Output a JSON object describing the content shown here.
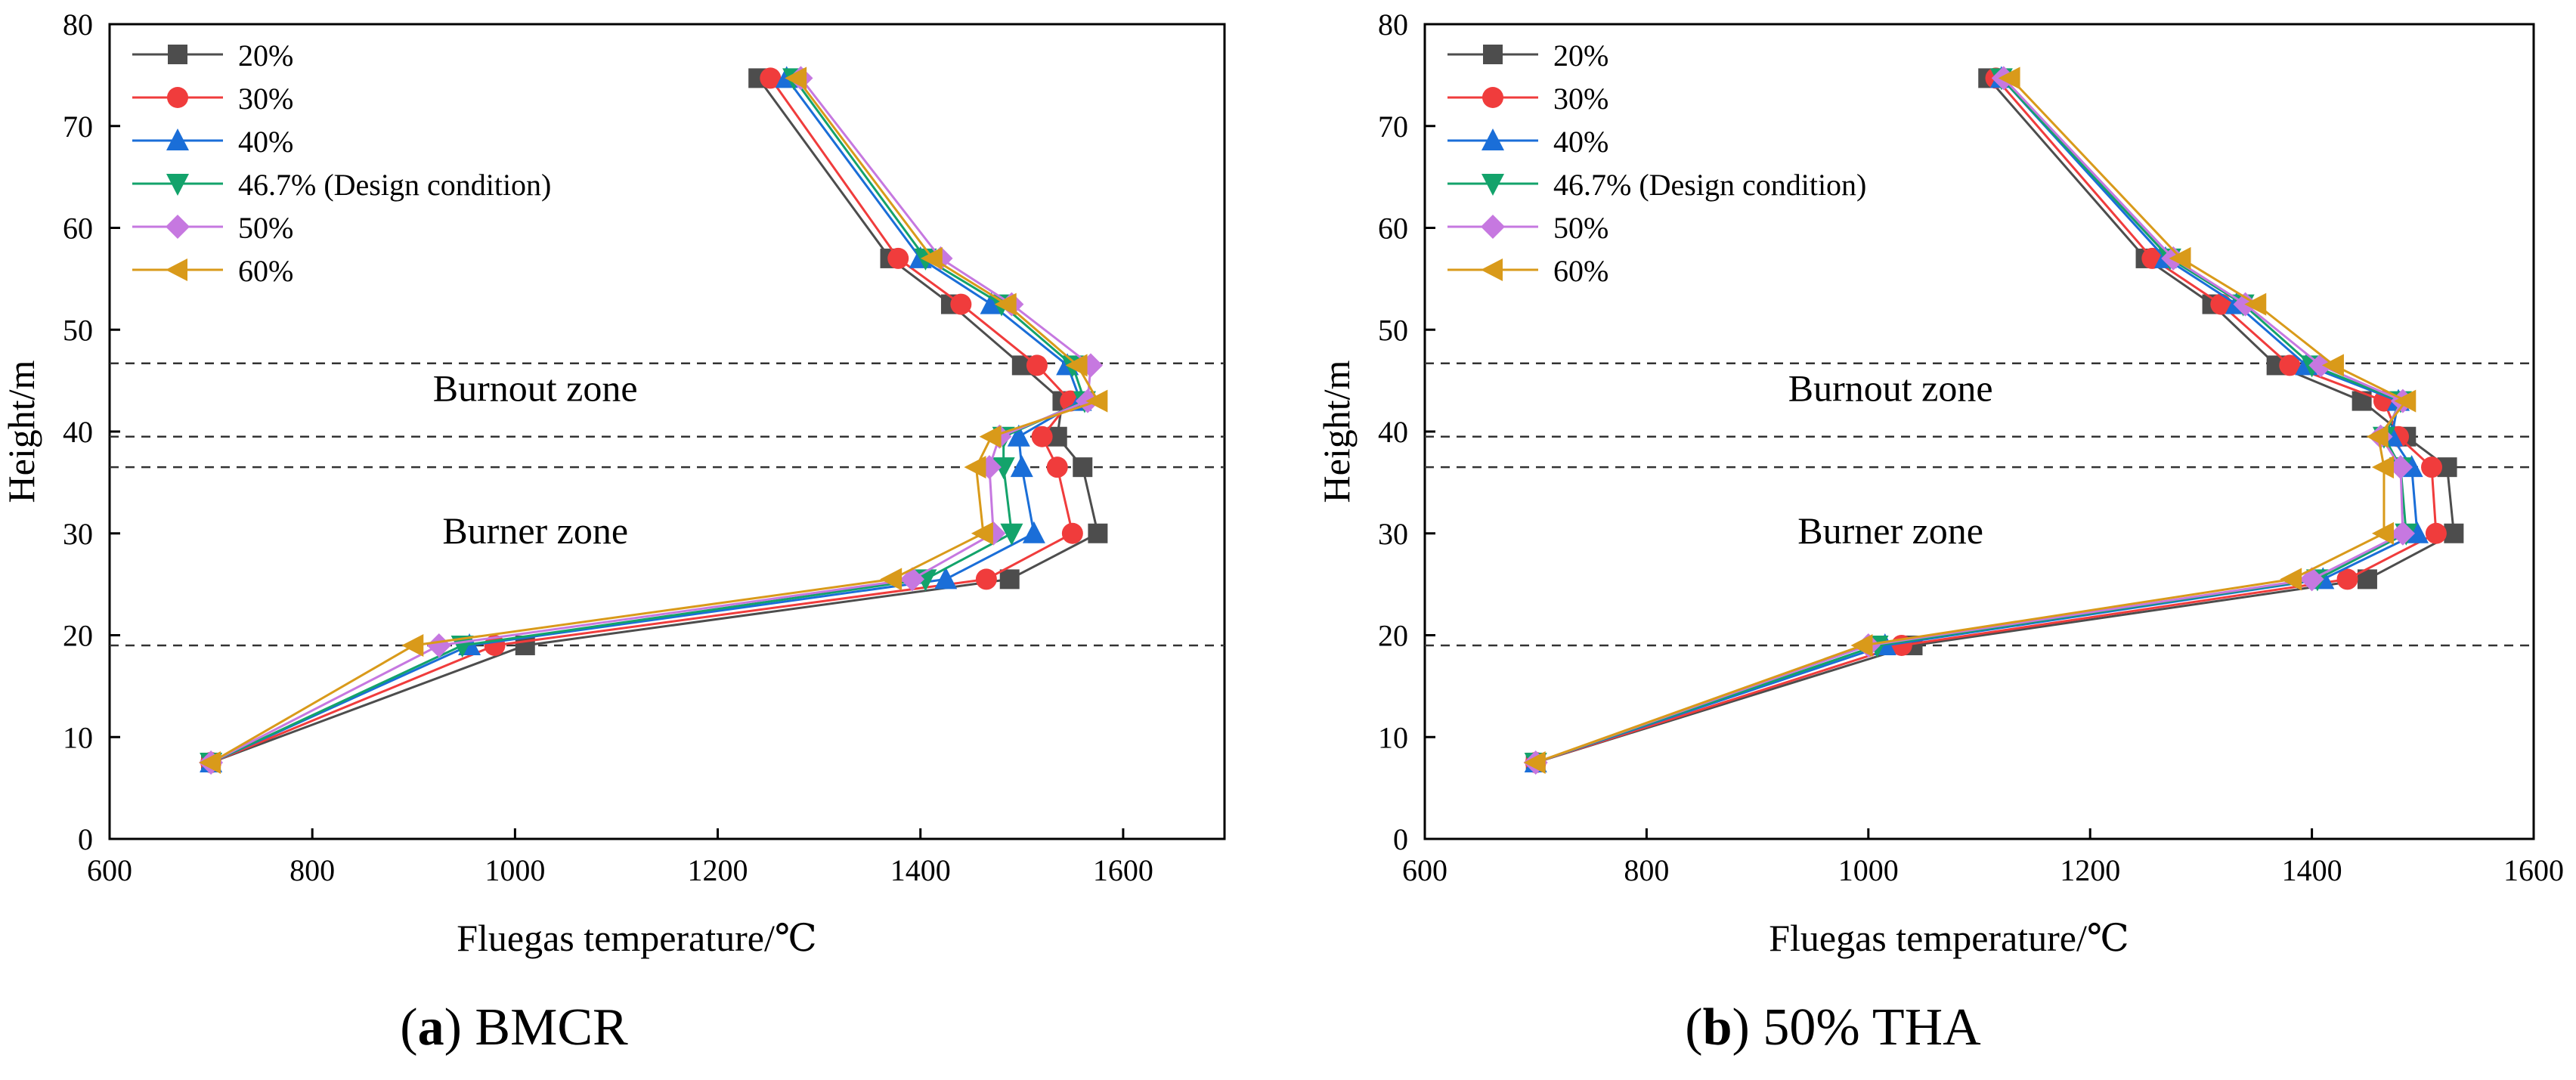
{
  "colors": {
    "20%": "#4d4d4d",
    "30%": "#f03c3c",
    "40%": "#1a6ed8",
    "46.7% (Design condition)": "#13a36b",
    "50%": "#c678e0",
    "60%": "#d99a1a",
    "dash_lines": "#333333"
  },
  "captions": [
    {
      "letter": "a",
      "text": "BMCR"
    },
    {
      "letter": "b",
      "text": "50% THA"
    }
  ],
  "chart_data": [
    {
      "type": "line",
      "xlabel": "Fluegas temperature/℃",
      "ylabel": "Height/m",
      "xlim": [
        600,
        1700
      ],
      "ylim": [
        0,
        80
      ],
      "xticks": [
        600,
        800,
        1000,
        1200,
        1400,
        1600
      ],
      "yticks": [
        0,
        10,
        20,
        30,
        40,
        50,
        60,
        70,
        80
      ],
      "legend_position": "top-left",
      "grid": false,
      "hlines": [
        19,
        36.5,
        39.5,
        46.7
      ],
      "zone_labels": [
        {
          "text": "Burnout zone",
          "x": 1020,
          "y": 43
        },
        {
          "text": "Burner zone",
          "x": 1020,
          "y": 29
        }
      ],
      "series": [
        {
          "name": "20%",
          "marker": "square",
          "x": [
            700,
            1010,
            1488,
            1575,
            1560,
            1535,
            1540,
            1500,
            1430,
            1370,
            1240
          ],
          "y": [
            7.5,
            19,
            25.5,
            30,
            36.5,
            39.5,
            43,
            46.5,
            52.5,
            57,
            74.7
          ]
        },
        {
          "name": "30%",
          "marker": "circle",
          "x": [
            700,
            980,
            1465,
            1550,
            1535,
            1520,
            1548,
            1515,
            1440,
            1378,
            1252
          ],
          "y": [
            7.5,
            19,
            25.5,
            30,
            36.5,
            39.5,
            43,
            46.5,
            52.5,
            57,
            74.7
          ]
        },
        {
          "name": "40%",
          "marker": "triangle-up",
          "x": [
            700,
            955,
            1425,
            1512,
            1500,
            1497,
            1558,
            1545,
            1470,
            1400,
            1268
          ],
          "y": [
            7.5,
            19,
            25.5,
            30,
            36.5,
            39.5,
            43,
            46.5,
            52.5,
            57,
            74.7
          ]
        },
        {
          "name": "46.7% (Design condition)",
          "marker": "triangle-down",
          "x": [
            700,
            948,
            1405,
            1490,
            1482,
            1482,
            1562,
            1550,
            1480,
            1405,
            1275
          ],
          "y": [
            7.5,
            19,
            25.5,
            30,
            36.5,
            39.5,
            43,
            46.5,
            52.5,
            57,
            74.7
          ]
        },
        {
          "name": "50%",
          "marker": "diamond",
          "x": [
            700,
            925,
            1392,
            1472,
            1468,
            1478,
            1565,
            1568,
            1490,
            1420,
            1282
          ],
          "y": [
            7.5,
            19,
            25.5,
            30,
            36.5,
            39.5,
            43,
            46.5,
            52.5,
            57,
            74.7
          ]
        },
        {
          "name": "60%",
          "marker": "triangle-left",
          "x": [
            700,
            900,
            1372,
            1462,
            1455,
            1470,
            1575,
            1555,
            1485,
            1412,
            1278
          ],
          "y": [
            7.5,
            19,
            25.5,
            30,
            36.5,
            39.5,
            43,
            46.5,
            52.5,
            57,
            74.7
          ]
        }
      ]
    },
    {
      "type": "line",
      "xlabel": "Fluegas temperature/℃",
      "ylabel": "Height/m",
      "xlim": [
        600,
        1600
      ],
      "ylim": [
        0,
        80
      ],
      "xticks": [
        600,
        800,
        1000,
        1200,
        1400,
        1600
      ],
      "yticks": [
        0,
        10,
        20,
        30,
        40,
        50,
        60,
        70,
        80
      ],
      "legend_position": "top-left",
      "grid": false,
      "hlines": [
        19,
        36.5,
        39.5,
        46.7
      ],
      "zone_labels": [
        {
          "text": "Burnout zone",
          "x": 1020,
          "y": 43
        },
        {
          "text": "Burner zone",
          "x": 1020,
          "y": 29
        }
      ],
      "series": [
        {
          "name": "20%",
          "marker": "square",
          "x": [
            700,
            1040,
            1450,
            1528,
            1522,
            1485,
            1445,
            1368,
            1310,
            1250,
            1108
          ],
          "y": [
            7.5,
            19,
            25.5,
            30,
            36.5,
            39.5,
            43,
            46.5,
            52.5,
            57,
            74.7
          ]
        },
        {
          "name": "30%",
          "marker": "circle",
          "x": [
            700,
            1030,
            1432,
            1512,
            1508,
            1478,
            1465,
            1380,
            1318,
            1256,
            1115
          ],
          "y": [
            7.5,
            19,
            25.5,
            30,
            36.5,
            39.5,
            43,
            46.5,
            52.5,
            57,
            74.7
          ]
        },
        {
          "name": "40%",
          "marker": "triangle-up",
          "x": [
            700,
            1015,
            1410,
            1495,
            1490,
            1472,
            1478,
            1395,
            1332,
            1268,
            1120
          ],
          "y": [
            7.5,
            19,
            25.5,
            30,
            36.5,
            39.5,
            43,
            46.5,
            52.5,
            57,
            74.7
          ]
        },
        {
          "name": "46.7% (Design condition)",
          "marker": "triangle-down",
          "x": [
            700,
            1008,
            1405,
            1485,
            1480,
            1465,
            1480,
            1400,
            1338,
            1272,
            1120
          ],
          "y": [
            7.5,
            19,
            25.5,
            30,
            36.5,
            39.5,
            43,
            46.5,
            52.5,
            57,
            74.7
          ]
        },
        {
          "name": "50%",
          "marker": "diamond",
          "x": [
            700,
            1000,
            1400,
            1482,
            1480,
            1462,
            1482,
            1408,
            1340,
            1275,
            1122
          ],
          "y": [
            7.5,
            19,
            25.5,
            30,
            36.5,
            39.5,
            43,
            46.5,
            52.5,
            57,
            74.7
          ]
        },
        {
          "name": "60%",
          "marker": "triangle-left",
          "x": [
            700,
            995,
            1382,
            1465,
            1465,
            1460,
            1485,
            1420,
            1350,
            1282,
            1128
          ],
          "y": [
            7.5,
            19,
            25.5,
            30,
            36.5,
            39.5,
            43,
            46.5,
            52.5,
            57,
            74.7
          ]
        }
      ]
    }
  ]
}
